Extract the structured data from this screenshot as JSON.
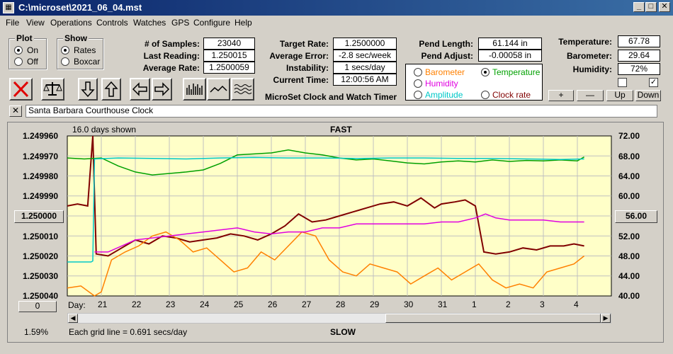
{
  "window": {
    "title": "C:\\microset\\2021_06_04.mst"
  },
  "menu": [
    "File",
    "View",
    "Operations",
    "Controls",
    "Watches",
    "GPS",
    "Configure",
    "Help"
  ],
  "plot_group": {
    "title": "Plot",
    "on": "On",
    "off": "Off",
    "selected": "On"
  },
  "show_group": {
    "title": "Show",
    "rates": "Rates",
    "boxcar": "Boxcar",
    "selected": "Rates"
  },
  "stats": {
    "samples_label": "# of Samples:",
    "samples": "23040",
    "last_label": "Last Reading:",
    "last": "1.250015",
    "avg_rate_label": "Average Rate:",
    "avg_rate": "1.2500059"
  },
  "rates": {
    "target_label": "Target Rate:",
    "target": "1.2500000",
    "avg_err_label": "Average Error:",
    "avg_err": "-2.8 sec/week",
    "instab_label": "Instability:",
    "instab": "1 secs/day",
    "time_label": "Current Time:",
    "time": "12:00:56 AM"
  },
  "app_name": "MicroSet Clock and Watch Timer",
  "pend": {
    "length_label": "Pend Length:",
    "length": "61.144 in",
    "adjust_label": "Pend Adjust:",
    "adjust": "-0.00058 in"
  },
  "env": {
    "temp_label": "Temperature:",
    "temp": "67.78",
    "baro_label": "Barometer:",
    "baro": "29.64",
    "hum_label": "Humidity:",
    "hum": "72%"
  },
  "secondary_select": {
    "barometer": "Barometer",
    "temperature": "Temperature",
    "humidity": "Humidity",
    "amplitude": "Amplitude",
    "clock_rate": "Clock rate",
    "selected": "Temperature",
    "colors": {
      "barometer": "#ff8000",
      "temperature": "#00a000",
      "humidity": "#e000e0",
      "amplitude": "#00c8c8",
      "clock_rate": "#800000"
    }
  },
  "scale_buttons": {
    "plus": "+",
    "minus": "—",
    "up": "Up",
    "down": "Down"
  },
  "checkbox_right_checked": "✓",
  "watch_name": "Santa Barbara Courthouse Clock",
  "close_x": "✕",
  "chart_data": {
    "type": "line",
    "days_shown": "16.0 days shown",
    "top_label": "FAST",
    "bottom_label": "SLOW",
    "x_axis_title": "Day:",
    "x_ticks": [
      "21",
      "22",
      "23",
      "24",
      "25",
      "26",
      "27",
      "28",
      "29",
      "30",
      "31",
      "1",
      "2",
      "3",
      "4"
    ],
    "left_ticks": [
      "1.249960",
      "1.249970",
      "1.249980",
      "1.249990",
      "1.250000",
      "1.250010",
      "1.250020",
      "1.250030",
      "1.250040"
    ],
    "left_center_button": "1.250000",
    "left_bottom_button": "0",
    "right_ticks": [
      "72.00",
      "68.00",
      "64.00",
      "60.00",
      "56.00",
      "52.00",
      "48.00",
      "44.00",
      "40.00"
    ],
    "right_center_button": "56.00",
    "grid_note": "Each grid line = 0.691 secs/day",
    "percent": "1.59%",
    "x_range_days": [
      0,
      16
    ],
    "rate_ylim": [
      1.25004,
      1.24996
    ],
    "temp_ylim": [
      40,
      72
    ],
    "series": [
      {
        "color": "#800000",
        "style": "rate",
        "points": [
          [
            0,
            1.249995
          ],
          [
            0.3,
            1.249994
          ],
          [
            0.6,
            1.249995
          ],
          [
            0.75,
            1.24996
          ],
          [
            0.85,
            1.250019
          ],
          [
            1.2,
            1.25002
          ],
          [
            1.6,
            1.250016
          ],
          [
            2.0,
            1.250012
          ],
          [
            2.4,
            1.250014
          ],
          [
            2.8,
            1.25001
          ],
          [
            3.2,
            1.250011
          ],
          [
            3.6,
            1.250013
          ],
          [
            4.0,
            1.250012
          ],
          [
            4.4,
            1.250011
          ],
          [
            4.8,
            1.250009
          ],
          [
            5.2,
            1.25001
          ],
          [
            5.6,
            1.250012
          ],
          [
            6.0,
            1.250009
          ],
          [
            6.4,
            1.250005
          ],
          [
            6.8,
            1.249999
          ],
          [
            7.2,
            1.250003
          ],
          [
            7.6,
            1.250002
          ],
          [
            8.0,
            1.25
          ],
          [
            8.4,
            1.249998
          ],
          [
            8.8,
            1.249996
          ],
          [
            9.2,
            1.249994
          ],
          [
            9.6,
            1.249993
          ],
          [
            10.0,
            1.249995
          ],
          [
            10.4,
            1.249991
          ],
          [
            10.8,
            1.249996
          ],
          [
            11.0,
            1.249994
          ],
          [
            11.4,
            1.249993
          ],
          [
            11.7,
            1.249992
          ],
          [
            12.0,
            1.249995
          ],
          [
            12.25,
            1.250018
          ],
          [
            12.6,
            1.250019
          ],
          [
            13.0,
            1.250018
          ],
          [
            13.4,
            1.250016
          ],
          [
            13.8,
            1.250017
          ],
          [
            14.2,
            1.250015
          ],
          [
            14.6,
            1.250015
          ],
          [
            14.9,
            1.250014
          ],
          [
            15.2,
            1.250015
          ]
        ]
      },
      {
        "color": "#ff8000",
        "style": "rate",
        "points": [
          [
            0,
            1.250036
          ],
          [
            0.4,
            1.250035
          ],
          [
            0.8,
            1.25004
          ],
          [
            1.0,
            1.250038
          ],
          [
            1.3,
            1.250022
          ],
          [
            1.7,
            1.250018
          ],
          [
            2.1,
            1.250015
          ],
          [
            2.5,
            1.25001
          ],
          [
            2.9,
            1.250008
          ],
          [
            3.3,
            1.250012
          ],
          [
            3.7,
            1.250018
          ],
          [
            4.1,
            1.250016
          ],
          [
            4.5,
            1.250022
          ],
          [
            4.9,
            1.250028
          ],
          [
            5.3,
            1.250026
          ],
          [
            5.7,
            1.250018
          ],
          [
            6.1,
            1.250022
          ],
          [
            6.5,
            1.250015
          ],
          [
            6.9,
            1.250008
          ],
          [
            7.3,
            1.25001
          ],
          [
            7.7,
            1.250022
          ],
          [
            8.1,
            1.250028
          ],
          [
            8.5,
            1.25003
          ],
          [
            8.9,
            1.250024
          ],
          [
            9.3,
            1.250026
          ],
          [
            9.7,
            1.250028
          ],
          [
            10.1,
            1.250034
          ],
          [
            10.5,
            1.25003
          ],
          [
            10.9,
            1.250026
          ],
          [
            11.3,
            1.250032
          ],
          [
            11.7,
            1.250028
          ],
          [
            12.1,
            1.250024
          ],
          [
            12.5,
            1.250032
          ],
          [
            12.9,
            1.250036
          ],
          [
            13.3,
            1.250034
          ],
          [
            13.7,
            1.250036
          ],
          [
            14.1,
            1.250028
          ],
          [
            14.5,
            1.250026
          ],
          [
            14.9,
            1.250024
          ],
          [
            15.2,
            1.25002
          ]
        ]
      },
      {
        "color": "#e000e0",
        "style": "rate",
        "points": [
          [
            0.8,
            1.250018
          ],
          [
            1.2,
            1.250018
          ],
          [
            1.6,
            1.250015
          ],
          [
            2.0,
            1.250012
          ],
          [
            2.5,
            1.250011
          ],
          [
            3.0,
            1.25001
          ],
          [
            3.5,
            1.250009
          ],
          [
            4.0,
            1.250008
          ],
          [
            4.5,
            1.250007
          ],
          [
            5.0,
            1.250006
          ],
          [
            5.5,
            1.250008
          ],
          [
            6.0,
            1.250009
          ],
          [
            6.5,
            1.250008
          ],
          [
            7.0,
            1.250008
          ],
          [
            7.5,
            1.250006
          ],
          [
            8.0,
            1.250006
          ],
          [
            8.5,
            1.250004
          ],
          [
            9.0,
            1.250004
          ],
          [
            9.5,
            1.250004
          ],
          [
            10.0,
            1.250004
          ],
          [
            10.5,
            1.250004
          ],
          [
            11.0,
            1.250003
          ],
          [
            11.5,
            1.250003
          ],
          [
            12.0,
            1.250001
          ],
          [
            12.3,
            1.249999
          ],
          [
            12.6,
            1.250001
          ],
          [
            13.0,
            1.250002
          ],
          [
            13.5,
            1.250002
          ],
          [
            14.0,
            1.250002
          ],
          [
            14.5,
            1.250003
          ],
          [
            15.2,
            1.250003
          ]
        ]
      },
      {
        "color": "#00a000",
        "style": "temp",
        "points": [
          [
            0,
            67.6
          ],
          [
            0.5,
            67.4
          ],
          [
            1.0,
            67.6
          ],
          [
            1.5,
            66.0
          ],
          [
            2.0,
            64.8
          ],
          [
            2.5,
            64.2
          ],
          [
            3.0,
            64.5
          ],
          [
            3.5,
            64.8
          ],
          [
            4.0,
            65.2
          ],
          [
            4.5,
            66.5
          ],
          [
            5.0,
            68.2
          ],
          [
            5.5,
            68.4
          ],
          [
            6.0,
            68.6
          ],
          [
            6.5,
            69.2
          ],
          [
            7.0,
            68.6
          ],
          [
            7.5,
            68.2
          ],
          [
            8.0,
            67.6
          ],
          [
            8.5,
            67.2
          ],
          [
            9.0,
            67.4
          ],
          [
            9.5,
            67.0
          ],
          [
            10.0,
            66.6
          ],
          [
            10.5,
            66.4
          ],
          [
            11.0,
            66.8
          ],
          [
            11.5,
            67.0
          ],
          [
            12.0,
            66.8
          ],
          [
            12.5,
            67.2
          ],
          [
            13.0,
            66.9
          ],
          [
            13.5,
            67.1
          ],
          [
            14.0,
            67.0
          ],
          [
            14.5,
            67.2
          ],
          [
            15.0,
            67.0
          ],
          [
            15.2,
            67.8
          ]
        ]
      },
      {
        "color": "#00c8c8",
        "style": "temp",
        "points": [
          [
            0,
            46.8
          ],
          [
            0.7,
            46.8
          ],
          [
            0.75,
            47.0
          ],
          [
            0.8,
            67.4
          ],
          [
            1.5,
            67.6
          ],
          [
            2.5,
            67.5
          ],
          [
            3.5,
            67.4
          ],
          [
            4.5,
            67.6
          ],
          [
            5.5,
            67.7
          ],
          [
            6.5,
            67.6
          ],
          [
            7.5,
            67.6
          ],
          [
            8.5,
            67.5
          ],
          [
            9.5,
            67.6
          ],
          [
            10.5,
            67.6
          ],
          [
            11.5,
            67.5
          ],
          [
            12.5,
            67.5
          ],
          [
            13.5,
            67.4
          ],
          [
            14.5,
            67.3
          ],
          [
            15.2,
            67.4
          ]
        ]
      }
    ]
  }
}
